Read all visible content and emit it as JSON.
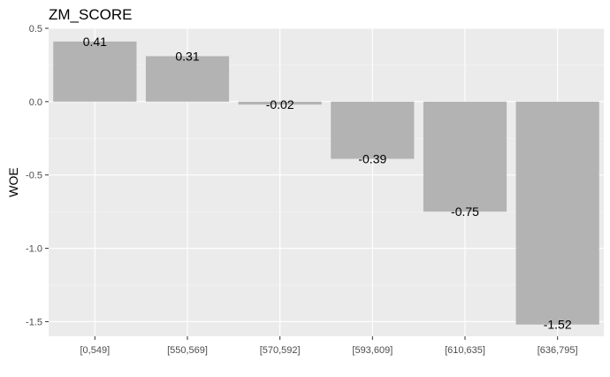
{
  "chart_data": {
    "type": "bar",
    "title": "ZM_SCORE",
    "xlabel": "",
    "ylabel": "WOE",
    "categories": [
      "[0,549]",
      "[550,569]",
      "[570,592]",
      "[593,609]",
      "[610,635]",
      "[636,795]"
    ],
    "values": [
      0.41,
      0.31,
      -0.02,
      -0.39,
      -0.75,
      -1.52
    ],
    "data_labels": [
      "0.41",
      "0.31",
      "-0.02",
      "-0.39",
      "-0.75",
      "-1.52"
    ],
    "ylim": [
      -1.6,
      0.5
    ],
    "yticks": [
      0.5,
      0.0,
      -0.5,
      -1.0,
      -1.5
    ],
    "ytick_labels": [
      "0.5",
      "0.0",
      "-0.5",
      "-1.0",
      "-1.5"
    ],
    "grid": true,
    "legend": "none",
    "colors": {
      "bar": "#b3b3b3",
      "panel": "#ebebeb",
      "grid_major": "#ffffff",
      "grid_minor": "#f5f5f5"
    }
  }
}
